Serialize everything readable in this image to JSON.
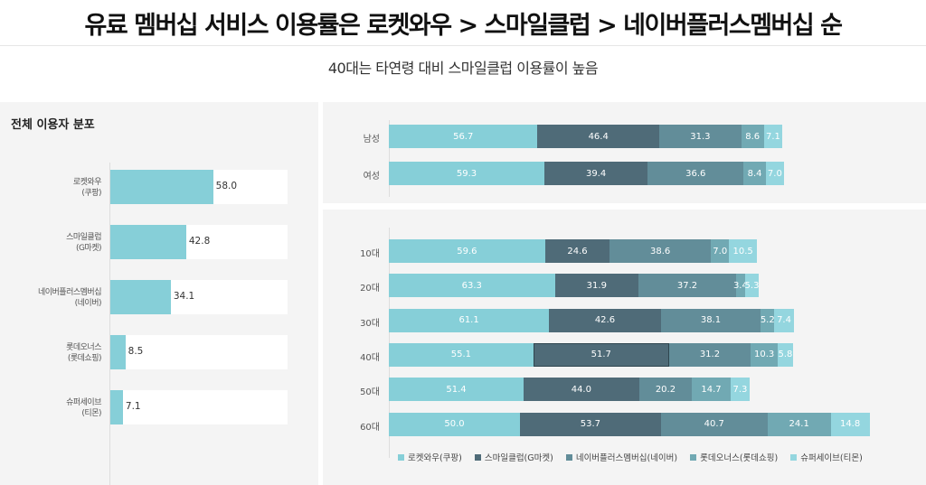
{
  "header": {
    "title": "유료 멤버십 서비스 이용률은 로켓와우 > 스마일클럽 > 네이버플러스멤버십 순",
    "subtitle": "40대는 타연령 대비 스마일클럽 이용률이 높음"
  },
  "chart_data": [
    {
      "type": "bar",
      "orientation": "horizontal",
      "title": "전체 이용자 분포",
      "categories": [
        [
          "로켓와우",
          "(쿠팡)"
        ],
        [
          "스마일클럽",
          "(G마켓)"
        ],
        [
          "네이버플러스멤버십",
          "(네이버)"
        ],
        [
          "롯데오너스",
          "(롯데쇼핑)"
        ],
        [
          "슈퍼세이브",
          "(티몬)"
        ]
      ],
      "values": [
        58.0,
        42.8,
        34.1,
        8.5,
        7.1
      ],
      "xlim": [
        0,
        100
      ],
      "color": "#86cfd8"
    },
    {
      "type": "bar",
      "stacked": true,
      "orientation": "horizontal",
      "categories": [
        "남성",
        "여성"
      ],
      "series": [
        {
          "name": "로켓와우(쿠팡)",
          "values": [
            56.7,
            59.3
          ]
        },
        {
          "name": "스마일클럽(G마켓)",
          "values": [
            46.4,
            39.4
          ]
        },
        {
          "name": "네이버플러스멤버십(네이버)",
          "values": [
            31.3,
            36.6
          ]
        },
        {
          "name": "롯데오너스(롯데쇼핑)",
          "values": [
            8.6,
            8.4
          ]
        },
        {
          "name": "슈퍼세이브(티몬)",
          "values": [
            7.1,
            7.0
          ]
        }
      ]
    },
    {
      "type": "bar",
      "stacked": true,
      "orientation": "horizontal",
      "categories": [
        "10대",
        "20대",
        "30대",
        "40대",
        "50대",
        "60대"
      ],
      "highlight": {
        "category": "40대",
        "series": "스마일클럽(G마켓)"
      },
      "series": [
        {
          "name": "로켓와우(쿠팡)",
          "values": [
            59.6,
            63.3,
            61.1,
            55.1,
            51.4,
            50.0
          ]
        },
        {
          "name": "스마일클럽(G마켓)",
          "values": [
            24.6,
            31.9,
            42.6,
            51.7,
            44.0,
            53.7
          ]
        },
        {
          "name": "네이버플러스멤버십(네이버)",
          "values": [
            38.6,
            37.2,
            38.1,
            31.2,
            20.2,
            40.7
          ]
        },
        {
          "name": "롯데오너스(롯데쇼핑)",
          "values": [
            7.0,
            3.4,
            5.2,
            10.3,
            14.7,
            24.1
          ]
        },
        {
          "name": "슈퍼세이브(티몬)",
          "values": [
            10.5,
            5.3,
            7.4,
            5.8,
            7.3,
            14.8
          ]
        }
      ],
      "legend": "bottom"
    }
  ],
  "colors": [
    "#86cfd8",
    "#4f6b78",
    "#628d99",
    "#71a9b3",
    "#94d6df"
  ]
}
